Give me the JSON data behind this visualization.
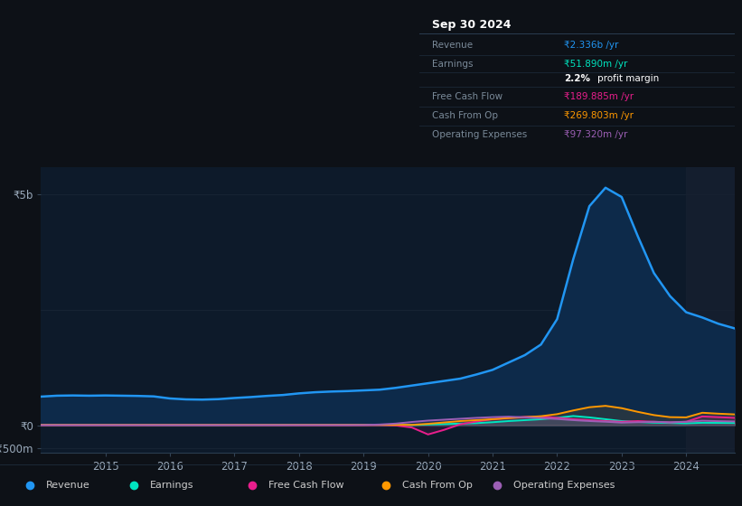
{
  "bg_color": "#0d1117",
  "chart_bg": "#0d1a2a",
  "grid_color": "#1a2d3d",
  "years": [
    2014.0,
    2014.25,
    2014.5,
    2014.75,
    2015.0,
    2015.25,
    2015.5,
    2015.75,
    2016.0,
    2016.25,
    2016.5,
    2016.75,
    2017.0,
    2017.25,
    2017.5,
    2017.75,
    2018.0,
    2018.25,
    2018.5,
    2018.75,
    2019.0,
    2019.25,
    2019.5,
    2019.75,
    2020.0,
    2020.25,
    2020.5,
    2020.75,
    2021.0,
    2021.25,
    2021.5,
    2021.75,
    2022.0,
    2022.25,
    2022.5,
    2022.75,
    2023.0,
    2023.25,
    2023.5,
    2023.75,
    2024.0,
    2024.25,
    2024.5,
    2024.75
  ],
  "revenue": [
    620,
    640,
    645,
    640,
    645,
    640,
    635,
    625,
    580,
    560,
    555,
    565,
    590,
    610,
    635,
    655,
    690,
    715,
    730,
    740,
    755,
    770,
    810,
    860,
    910,
    960,
    1010,
    1100,
    1200,
    1360,
    1520,
    1750,
    2300,
    3600,
    4750,
    5150,
    4950,
    4100,
    3300,
    2800,
    2450,
    2336,
    2200,
    2100
  ],
  "earnings": [
    8,
    8,
    8,
    8,
    8,
    7,
    7,
    6,
    5,
    5,
    5,
    5,
    6,
    7,
    8,
    8,
    10,
    10,
    10,
    10,
    10,
    8,
    5,
    3,
    15,
    25,
    35,
    45,
    65,
    90,
    110,
    130,
    160,
    200,
    170,
    130,
    90,
    70,
    55,
    48,
    42,
    52,
    50,
    48
  ],
  "free_cash_flow": [
    2,
    2,
    2,
    2,
    2,
    2,
    2,
    2,
    2,
    2,
    2,
    2,
    2,
    2,
    2,
    2,
    2,
    2,
    2,
    2,
    2,
    2,
    -5,
    -50,
    -200,
    -100,
    20,
    80,
    130,
    160,
    180,
    190,
    160,
    130,
    110,
    90,
    75,
    90,
    75,
    60,
    75,
    190,
    175,
    160
  ],
  "cash_from_op": [
    8,
    8,
    8,
    8,
    8,
    8,
    8,
    8,
    8,
    8,
    8,
    8,
    8,
    8,
    8,
    8,
    8,
    8,
    8,
    8,
    8,
    8,
    8,
    8,
    30,
    60,
    90,
    110,
    130,
    155,
    175,
    195,
    240,
    320,
    390,
    420,
    370,
    290,
    220,
    175,
    170,
    270,
    250,
    235
  ],
  "operating_expenses": [
    3,
    3,
    3,
    3,
    3,
    3,
    3,
    3,
    3,
    3,
    3,
    3,
    3,
    3,
    3,
    3,
    3,
    3,
    3,
    3,
    5,
    15,
    35,
    70,
    100,
    120,
    140,
    160,
    175,
    185,
    170,
    155,
    135,
    110,
    90,
    75,
    55,
    65,
    75,
    65,
    75,
    97,
    88,
    82
  ],
  "revenue_color": "#2196f3",
  "revenue_fill": "#0d2a4a",
  "earnings_color": "#00e5c0",
  "fcf_color": "#e91e8c",
  "cfo_color": "#ff9800",
  "opex_color": "#9c5fb5",
  "ylim_min": -600,
  "ylim_max": 5600,
  "yticks": [
    -500,
    0,
    5000
  ],
  "ytick_labels": [
    "-₹500m",
    "₹0",
    "₹5b"
  ],
  "xticks": [
    2015,
    2016,
    2017,
    2018,
    2019,
    2020,
    2021,
    2022,
    2023,
    2024
  ],
  "info_date": "Sep 30 2024",
  "info_rows": [
    {
      "label": "Revenue",
      "value": "₹2.336b /yr",
      "vcolor": "#2196f3"
    },
    {
      "label": "Earnings",
      "value": "₹51.890m /yr",
      "vcolor": "#00e5c0"
    },
    {
      "label": "",
      "value": "2.2% profit margin",
      "vcolor": "#ffffff"
    },
    {
      "label": "Free Cash Flow",
      "value": "₹189.885m /yr",
      "vcolor": "#e91e8c"
    },
    {
      "label": "Cash From Op",
      "value": "₹269.803m /yr",
      "vcolor": "#ff9800"
    },
    {
      "label": "Operating Expenses",
      "value": "₹97.320m /yr",
      "vcolor": "#9c5fb5"
    }
  ],
  "legend_items": [
    {
      "label": "Revenue",
      "color": "#2196f3"
    },
    {
      "label": "Earnings",
      "color": "#00e5c0"
    },
    {
      "label": "Free Cash Flow",
      "color": "#e91e8c"
    },
    {
      "label": "Cash From Op",
      "color": "#ff9800"
    },
    {
      "label": "Operating Expenses",
      "color": "#9c5fb5"
    }
  ]
}
